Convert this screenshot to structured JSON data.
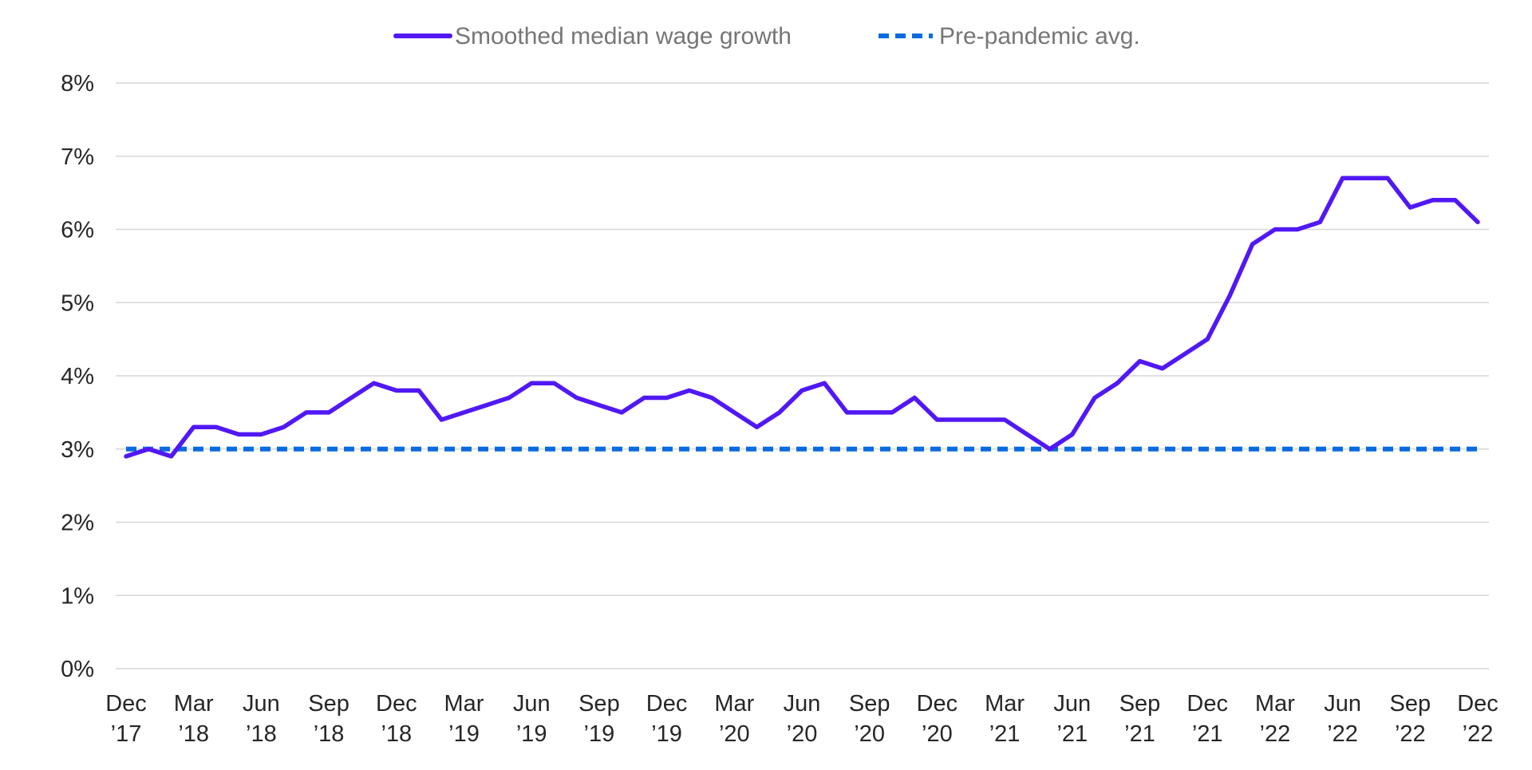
{
  "chart_data": {
    "type": "line",
    "legend": {
      "position": "top-center",
      "entries": [
        {
          "label": "Smoothed median wage growth",
          "style": "solid",
          "color": "#5118f5"
        },
        {
          "label": "Pre-pandemic avg.",
          "style": "dashed",
          "color": "#0a6be0"
        }
      ]
    },
    "y_axis": {
      "min": 0,
      "max": 8,
      "ticks": [
        0,
        1,
        2,
        3,
        4,
        5,
        6,
        7,
        8
      ],
      "tick_labels": [
        "0%",
        "1%",
        "2%",
        "3%",
        "4%",
        "5%",
        "6%",
        "7%",
        "8%"
      ],
      "gridlines": true
    },
    "x_axis": {
      "start": "Dec 2017",
      "end": "Dec 2022",
      "tick_labels": [
        {
          "month": "Dec",
          "year": "’17"
        },
        {
          "month": "Mar",
          "year": "’18"
        },
        {
          "month": "Jun",
          "year": "’18"
        },
        {
          "month": "Sep",
          "year": "’18"
        },
        {
          "month": "Dec",
          "year": "’18"
        },
        {
          "month": "Mar",
          "year": "’19"
        },
        {
          "month": "Jun",
          "year": "’19"
        },
        {
          "month": "Sep",
          "year": "’19"
        },
        {
          "month": "Dec",
          "year": "’19"
        },
        {
          "month": "Mar",
          "year": "’20"
        },
        {
          "month": "Jun",
          "year": "’20"
        },
        {
          "month": "Sep",
          "year": "’20"
        },
        {
          "month": "Dec",
          "year": "’20"
        },
        {
          "month": "Mar",
          "year": "’21"
        },
        {
          "month": "Jun",
          "year": "’21"
        },
        {
          "month": "Sep",
          "year": "’21"
        },
        {
          "month": "Dec",
          "year": "’21"
        },
        {
          "month": "Mar",
          "year": "’22"
        },
        {
          "month": "Jun",
          "year": "’22"
        },
        {
          "month": "Sep",
          "year": "’22"
        },
        {
          "month": "Dec",
          "year": "’22"
        }
      ]
    },
    "series": [
      {
        "name": "Smoothed median wage growth",
        "color": "#5118f5",
        "style": "solid",
        "values": [
          2.9,
          3.0,
          2.9,
          3.3,
          3.3,
          3.2,
          3.2,
          3.3,
          3.5,
          3.5,
          3.7,
          3.9,
          3.8,
          3.8,
          3.4,
          3.5,
          3.6,
          3.7,
          3.9,
          3.9,
          3.7,
          3.6,
          3.5,
          3.7,
          3.7,
          3.8,
          3.7,
          3.5,
          3.3,
          3.5,
          3.8,
          3.9,
          3.5,
          3.5,
          3.5,
          3.7,
          3.4,
          3.4,
          3.4,
          3.4,
          3.2,
          3.0,
          3.2,
          3.7,
          3.9,
          4.2,
          4.1,
          4.3,
          4.5,
          5.1,
          5.8,
          6.0,
          6.0,
          6.1,
          6.7,
          6.7,
          6.7,
          6.3,
          6.4,
          6.4,
          6.1
        ]
      },
      {
        "name": "Pre-pandemic avg.",
        "color": "#0a6be0",
        "style": "dashed",
        "constant_value": 3.0
      }
    ]
  }
}
